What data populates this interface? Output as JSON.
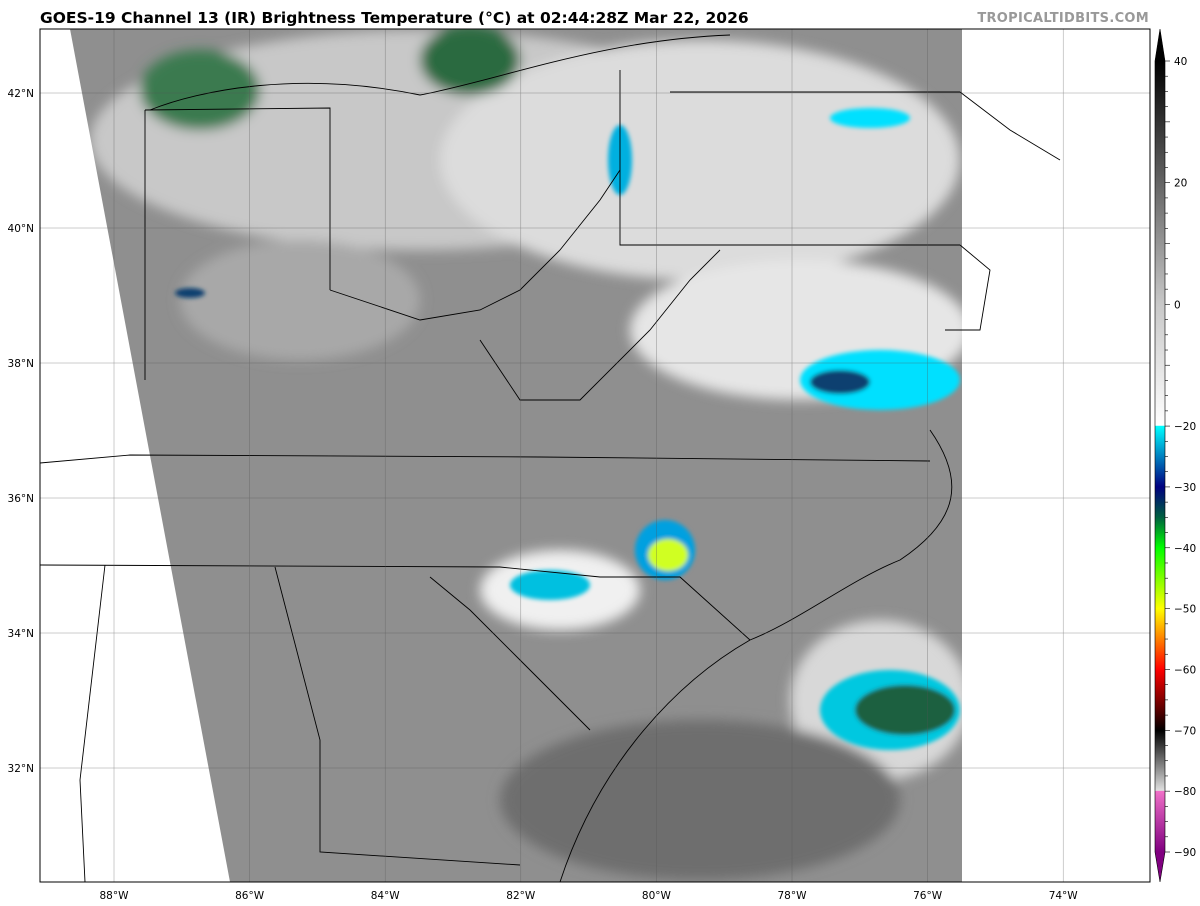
{
  "header": {
    "title": "GOES-19 Channel 13 (IR) Brightness Temperature (°C) at 02:44:28Z Mar 22, 2026",
    "watermark": "TROPICALTIDBITS.COM"
  },
  "map": {
    "longitude_labels": [
      "88°W",
      "86°W",
      "84°W",
      "82°W",
      "80°W",
      "78°W",
      "76°W",
      "74°W"
    ],
    "longitudes": [
      -88,
      -86,
      -84,
      -82,
      -80,
      -78,
      -76,
      -74
    ],
    "latitude_labels": [
      "42°N",
      "40°N",
      "38°N",
      "36°N",
      "34°N",
      "32°N"
    ],
    "latitudes": [
      42,
      40,
      38,
      36,
      34,
      32
    ],
    "extent": {
      "lon": [
        -89.1,
        -72.7
      ],
      "lat": [
        30.3,
        42.9
      ]
    },
    "background_color": "#8f8f8f",
    "no_data_color": "#ffffff"
  },
  "colorbar": {
    "unit": "°C",
    "range": [
      -90,
      40
    ],
    "tick_labels": [
      "40",
      "20",
      "0",
      "−20",
      "−30",
      "−40",
      "−50",
      "−60",
      "−70",
      "−80",
      "−90"
    ],
    "tick_values": [
      40,
      20,
      0,
      -20,
      -30,
      -40,
      -50,
      -60,
      -70,
      -80,
      -90
    ],
    "stops": [
      {
        "value": 40,
        "color": "#000000"
      },
      {
        "value": 0,
        "color": "#c8c8c8"
      },
      {
        "value": -19.9,
        "color": "#ffffff"
      },
      {
        "value": -20,
        "color": "#00ffff"
      },
      {
        "value": -25,
        "color": "#0080c0"
      },
      {
        "value": -30,
        "color": "#000080"
      },
      {
        "value": -35,
        "color": "#006040"
      },
      {
        "value": -40,
        "color": "#00ff00"
      },
      {
        "value": -50,
        "color": "#ffff00"
      },
      {
        "value": -55,
        "color": "#ff8000"
      },
      {
        "value": -60,
        "color": "#ff0000"
      },
      {
        "value": -67,
        "color": "#500000"
      },
      {
        "value": -70,
        "color": "#000000"
      },
      {
        "value": -79.9,
        "color": "#e0e0e0"
      },
      {
        "value": -80,
        "color": "#f070c8"
      },
      {
        "value": -90,
        "color": "#800080"
      }
    ]
  }
}
